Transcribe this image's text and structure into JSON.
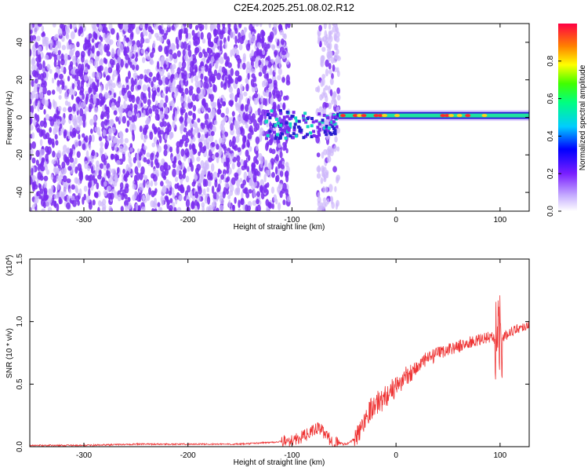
{
  "figure_title": "C2E4.2025.251.08.02.R12",
  "colors": {
    "snr_line": "#ee3333",
    "spectrogram_scatter": "#7a2cf0",
    "spectrogram_faint": "#cdb6fb",
    "axis": "#000000"
  },
  "chart_data": [
    {
      "type": "heatmap",
      "title": "",
      "xlabel": "Height of straight line (km)",
      "ylabel": "Frequency (Hz)",
      "xlim": [
        -352,
        128
      ],
      "ylim": [
        -50,
        50
      ],
      "x_ticks": [
        -300,
        -200,
        -100,
        0,
        100
      ],
      "x_tick_labels": [
        "-300",
        "-200",
        "-100",
        "0",
        "100"
      ],
      "y_ticks": [
        -40,
        -20,
        0,
        20,
        40
      ],
      "y_tick_labels": [
        "-40",
        "-20",
        "0",
        "20",
        "40"
      ],
      "colorbar": {
        "label": "Normalized spectral amplitude",
        "range": [
          0,
          1
        ],
        "ticks": [
          0.0,
          0.2,
          0.4,
          0.6,
          0.8
        ],
        "tick_labels": [
          "0.0",
          "0.2",
          "0.4",
          "0.6",
          "0.8"
        ],
        "colormap": "rainbow (white-violet-blue-cyan-green-yellow-red)"
      },
      "regions": [
        {
          "name": "broadband noise",
          "x_range": [
            -352,
            -103
          ],
          "freq_range": [
            -50,
            50
          ],
          "amplitude": 0.15
        },
        {
          "name": "noise column",
          "x_range": [
            -76,
            -55
          ],
          "freq_range": [
            -50,
            50
          ],
          "amplitude": 0.1
        },
        {
          "name": "signal onset",
          "x_range": [
            -125,
            -55
          ],
          "freq_center": 0,
          "amplitude": 0.35
        },
        {
          "name": "signal ridge",
          "x_range": [
            -55,
            128
          ],
          "freq_center": 1,
          "amplitude": 0.9
        }
      ]
    },
    {
      "type": "line",
      "title": "",
      "xlabel": "Height of straight line (km)",
      "ylabel": "SNR (10 * v/v)",
      "y_scale_label": "(x10",
      "y_scale_exponent": "4",
      "y_scale_close": ")",
      "xlim": [
        -352,
        128
      ],
      "ylim": [
        0,
        1.5
      ],
      "x_ticks": [
        -300,
        -200,
        -100,
        0,
        100
      ],
      "x_tick_labels": [
        "-300",
        "-200",
        "-100",
        "0",
        "100"
      ],
      "y_ticks": [
        0.0,
        0.5,
        1.0,
        1.5
      ],
      "y_tick_labels": [
        "0.0",
        "0.5",
        "1.0",
        "1.5"
      ],
      "series": [
        {
          "name": "SNR",
          "color": "#ee3333",
          "x": [
            -352,
            -300,
            -250,
            -200,
            -150,
            -110,
            -95,
            -85,
            -75,
            -70,
            -65,
            -60,
            -55,
            -50,
            -45,
            -40,
            -35,
            -30,
            -25,
            -20,
            -15,
            -10,
            -5,
            0,
            5,
            10,
            15,
            20,
            25,
            30,
            40,
            50,
            60,
            70,
            80,
            85,
            90,
            95,
            98,
            100,
            103,
            106,
            110,
            115,
            120,
            128
          ],
          "y": [
            0.01,
            0.01,
            0.02,
            0.02,
            0.02,
            0.04,
            0.06,
            0.1,
            0.15,
            0.12,
            0.07,
            0.03,
            0.03,
            0.02,
            0.03,
            0.06,
            0.12,
            0.22,
            0.3,
            0.33,
            0.37,
            0.4,
            0.45,
            0.47,
            0.52,
            0.57,
            0.6,
            0.63,
            0.67,
            0.7,
            0.74,
            0.78,
            0.8,
            0.83,
            0.85,
            0.87,
            0.88,
            0.85,
            0.95,
            0.92,
            0.87,
            0.89,
            0.92,
            0.94,
            0.95,
            0.98
          ]
        }
      ]
    }
  ]
}
